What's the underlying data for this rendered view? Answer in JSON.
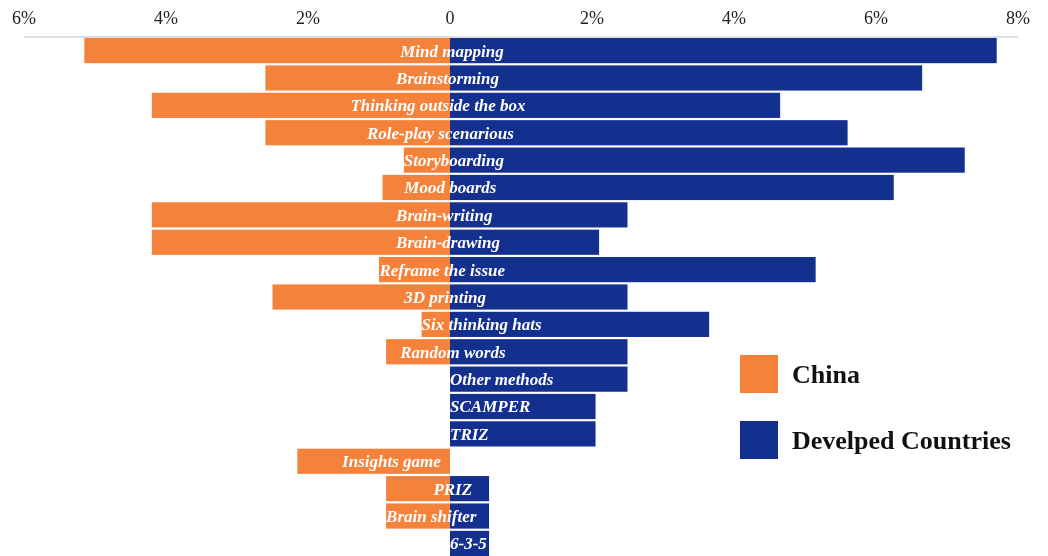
{
  "chart_data": {
    "type": "bar",
    "orientation": "horizontal",
    "stacked": true,
    "categories": [
      "Mind mapping",
      "Brainstorming",
      "Thinking outside the box",
      "Role-play scenarious",
      "Storyboarding",
      "Mood boards",
      "Brain-writing",
      "Brain-drawing",
      "Reframe the issue",
      "3D printing",
      "Six thinking hats",
      "Random words",
      "Other methods",
      "SCAMPER",
      "TRIZ",
      "Insights game",
      "PRIZ",
      "Brain shifter",
      "6-3-5"
    ],
    "series": [
      {
        "name": "China",
        "color": "#f5823a",
        "values": [
          -5.15,
          -2.6,
          -4.2,
          -2.6,
          -0.65,
          -0.95,
          -4.2,
          -4.2,
          -1.0,
          -2.5,
          -0.4,
          -0.9,
          0,
          0,
          0,
          -2.15,
          -0.9,
          -0.9,
          0
        ]
      },
      {
        "name": "Develped Countries",
        "color": "#13308f",
        "values": [
          7.7,
          6.65,
          4.65,
          5.6,
          7.25,
          6.25,
          2.5,
          2.1,
          5.15,
          2.5,
          3.65,
          2.5,
          2.5,
          2.05,
          2.05,
          0,
          0.55,
          0.55,
          0.55
        ]
      }
    ],
    "xlim": [
      -6,
      8
    ],
    "xticks": [
      {
        "value": -6,
        "label": "6%"
      },
      {
        "value": -4,
        "label": "4%"
      },
      {
        "value": -2,
        "label": "2%"
      },
      0,
      {
        "value": 2,
        "label": "2%"
      },
      {
        "value": 4,
        "label": "4%"
      },
      {
        "value": 6,
        "label": "6%"
      },
      {
        "value": 8,
        "label": "8%"
      }
    ],
    "grid": false,
    "legend": "bottom right"
  }
}
